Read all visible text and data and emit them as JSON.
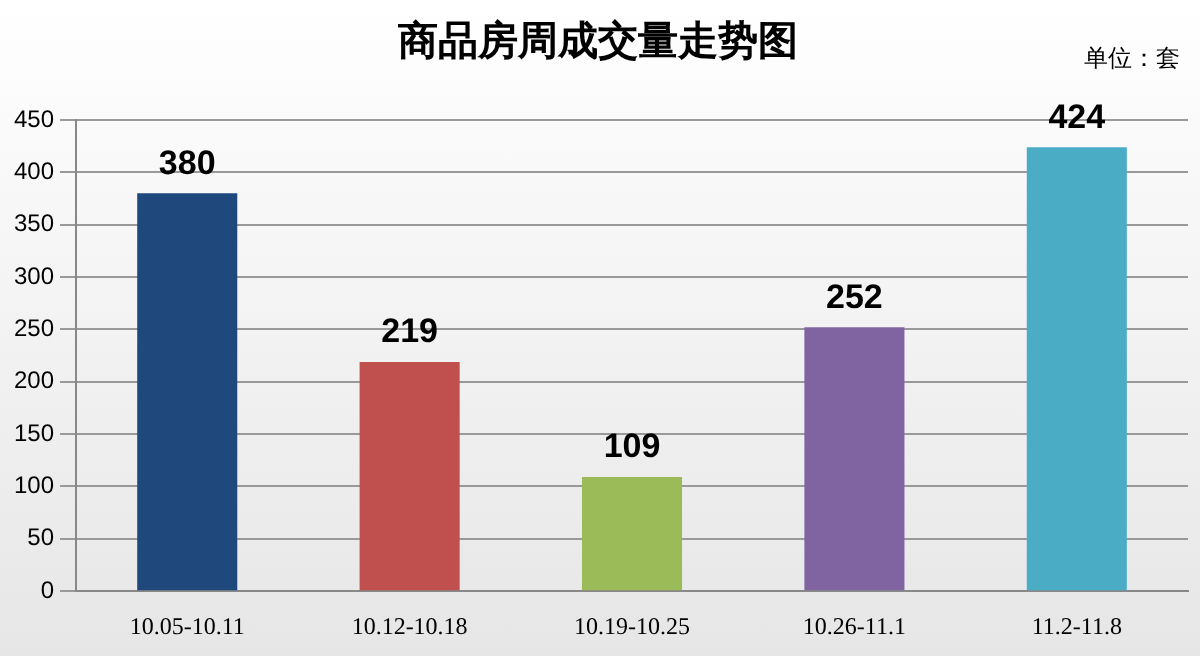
{
  "chart_data": {
    "type": "bar",
    "title": "商品房周成交量走势图",
    "annotations": [
      "单位：套"
    ],
    "categories": [
      "10.05-10.11",
      "10.12-10.18",
      "10.19-10.25",
      "10.26-11.1",
      "11.2-11.8"
    ],
    "values": [
      380,
      219,
      109,
      252,
      424
    ],
    "colors": [
      "#1f497d",
      "#c0504d",
      "#9bbb59",
      "#8064a2",
      "#4bacc6"
    ],
    "ylim": [
      0,
      450
    ],
    "yticks": [
      0,
      50,
      100,
      150,
      200,
      250,
      300,
      350,
      400,
      450
    ],
    "grid": "y",
    "legend": false,
    "data_labels": true
  }
}
